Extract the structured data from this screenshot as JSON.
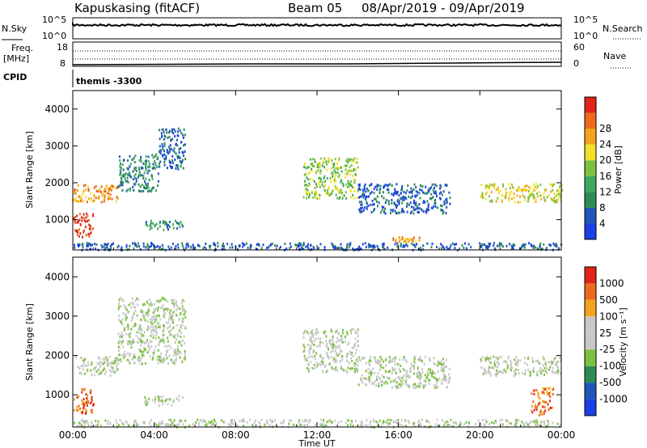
{
  "header": {
    "station": "Kapuskasing (fitACF)",
    "beam": "Beam 05",
    "date_range": "08/Apr/2019 - 09/Apr/2019"
  },
  "panels": {
    "nsky": {
      "label": "N.Sky",
      "left_ticks": [
        "10^5",
        "10^0"
      ],
      "right_ticks": [
        "10^5",
        "10^0"
      ],
      "right_label": "N.Search"
    },
    "freq": {
      "label_line1": "Freq.",
      "label_line2": "[MHz]",
      "left_ticks": [
        "18",
        "8"
      ],
      "right_ticks": [
        "60",
        "0"
      ],
      "right_label": "Nave"
    },
    "cpid": {
      "label": "CPID",
      "value": "themis -3300"
    }
  },
  "colors": {
    "power": [
      "#1a3fe6",
      "#1f57b8",
      "#2e8a55",
      "#3fa85c",
      "#7dc23f",
      "#f2e02a",
      "#f2a41c",
      "#ee6a1c",
      "#e02418"
    ],
    "velocity": [
      "#1a3fe6",
      "#1f57b8",
      "#2e8a55",
      "#7dc23f",
      "#c8c8c8",
      "#c8c8c8",
      "#f2a41c",
      "#ee6a1c",
      "#e02418"
    ]
  },
  "chart_data": [
    {
      "type": "heatmap",
      "name": "power",
      "xlabel": "",
      "ylabel": "Slant Range [km]",
      "x_ticks": [
        "00:00",
        "04:00",
        "08:00",
        "12:00",
        "16:00",
        "20:00",
        "00:00"
      ],
      "y_ticks": [
        1000,
        2000,
        3000,
        4000
      ],
      "ylim": [
        180,
        4500
      ],
      "colorbar": {
        "label": "Power [dB]",
        "ticks": [
          "4",
          "8",
          "12",
          "16",
          "20",
          "24",
          "28"
        ]
      },
      "regions": [
        {
          "hours": [
            0.0,
            2.2
          ],
          "range_km": [
            1500,
            2000
          ],
          "level": 6
        },
        {
          "hours": [
            2.2,
            4.2
          ],
          "range_km": [
            1800,
            2800
          ],
          "level": 2
        },
        {
          "hours": [
            4.2,
            5.5
          ],
          "range_km": [
            2400,
            3500
          ],
          "level": 1
        },
        {
          "hours": [
            0.0,
            1.0
          ],
          "range_km": [
            550,
            1200
          ],
          "level": 8
        },
        {
          "hours": [
            3.5,
            5.5
          ],
          "range_km": [
            750,
            1000
          ],
          "level": 2
        },
        {
          "hours": [
            11.3,
            14.0
          ],
          "range_km": [
            1600,
            2700
          ],
          "level": 4
        },
        {
          "hours": [
            14.0,
            18.5
          ],
          "range_km": [
            1200,
            2000
          ],
          "level": 1
        },
        {
          "hours": [
            20.0,
            24.0
          ],
          "range_km": [
            1500,
            2000
          ],
          "level": 5
        },
        {
          "hours": [
            15.7,
            17.0
          ],
          "range_km": [
            400,
            550
          ],
          "level": 6
        },
        {
          "hours": [
            0.0,
            24.0
          ],
          "range_km": [
            200,
            400
          ],
          "level": 1
        }
      ]
    },
    {
      "type": "heatmap",
      "name": "velocity",
      "xlabel": "Time UT",
      "ylabel": "Slant Range [km]",
      "x_ticks": [
        "00:00",
        "04:00",
        "08:00",
        "12:00",
        "16:00",
        "20:00",
        "00:00"
      ],
      "y_ticks": [
        1000,
        2000,
        3000,
        4000
      ],
      "ylim": [
        180,
        4500
      ],
      "colorbar": {
        "label": "Velocity [m s⁻¹]",
        "ticks": [
          "1000",
          "500",
          "100",
          "25",
          "-25",
          "-100",
          "-500",
          "-1000"
        ]
      },
      "regions": [
        {
          "hours": [
            0.0,
            2.2
          ],
          "range_km": [
            1500,
            2000
          ],
          "level": 4
        },
        {
          "hours": [
            2.2,
            5.5
          ],
          "range_km": [
            1800,
            3500
          ],
          "level": 4
        },
        {
          "hours": [
            0.0,
            1.0
          ],
          "range_km": [
            550,
            1200
          ],
          "level": 7
        },
        {
          "hours": [
            3.5,
            5.5
          ],
          "range_km": [
            750,
            1000
          ],
          "level": 4
        },
        {
          "hours": [
            11.3,
            14.0
          ],
          "range_km": [
            1600,
            2700
          ],
          "level": 4
        },
        {
          "hours": [
            14.0,
            18.5
          ],
          "range_km": [
            1200,
            2000
          ],
          "level": 4
        },
        {
          "hours": [
            20.0,
            24.0
          ],
          "range_km": [
            1500,
            2000
          ],
          "level": 4
        },
        {
          "hours": [
            22.5,
            23.6
          ],
          "range_km": [
            500,
            1200
          ],
          "level": 7
        },
        {
          "hours": [
            0.0,
            24.0
          ],
          "range_km": [
            200,
            400
          ],
          "level": 4
        }
      ]
    }
  ]
}
